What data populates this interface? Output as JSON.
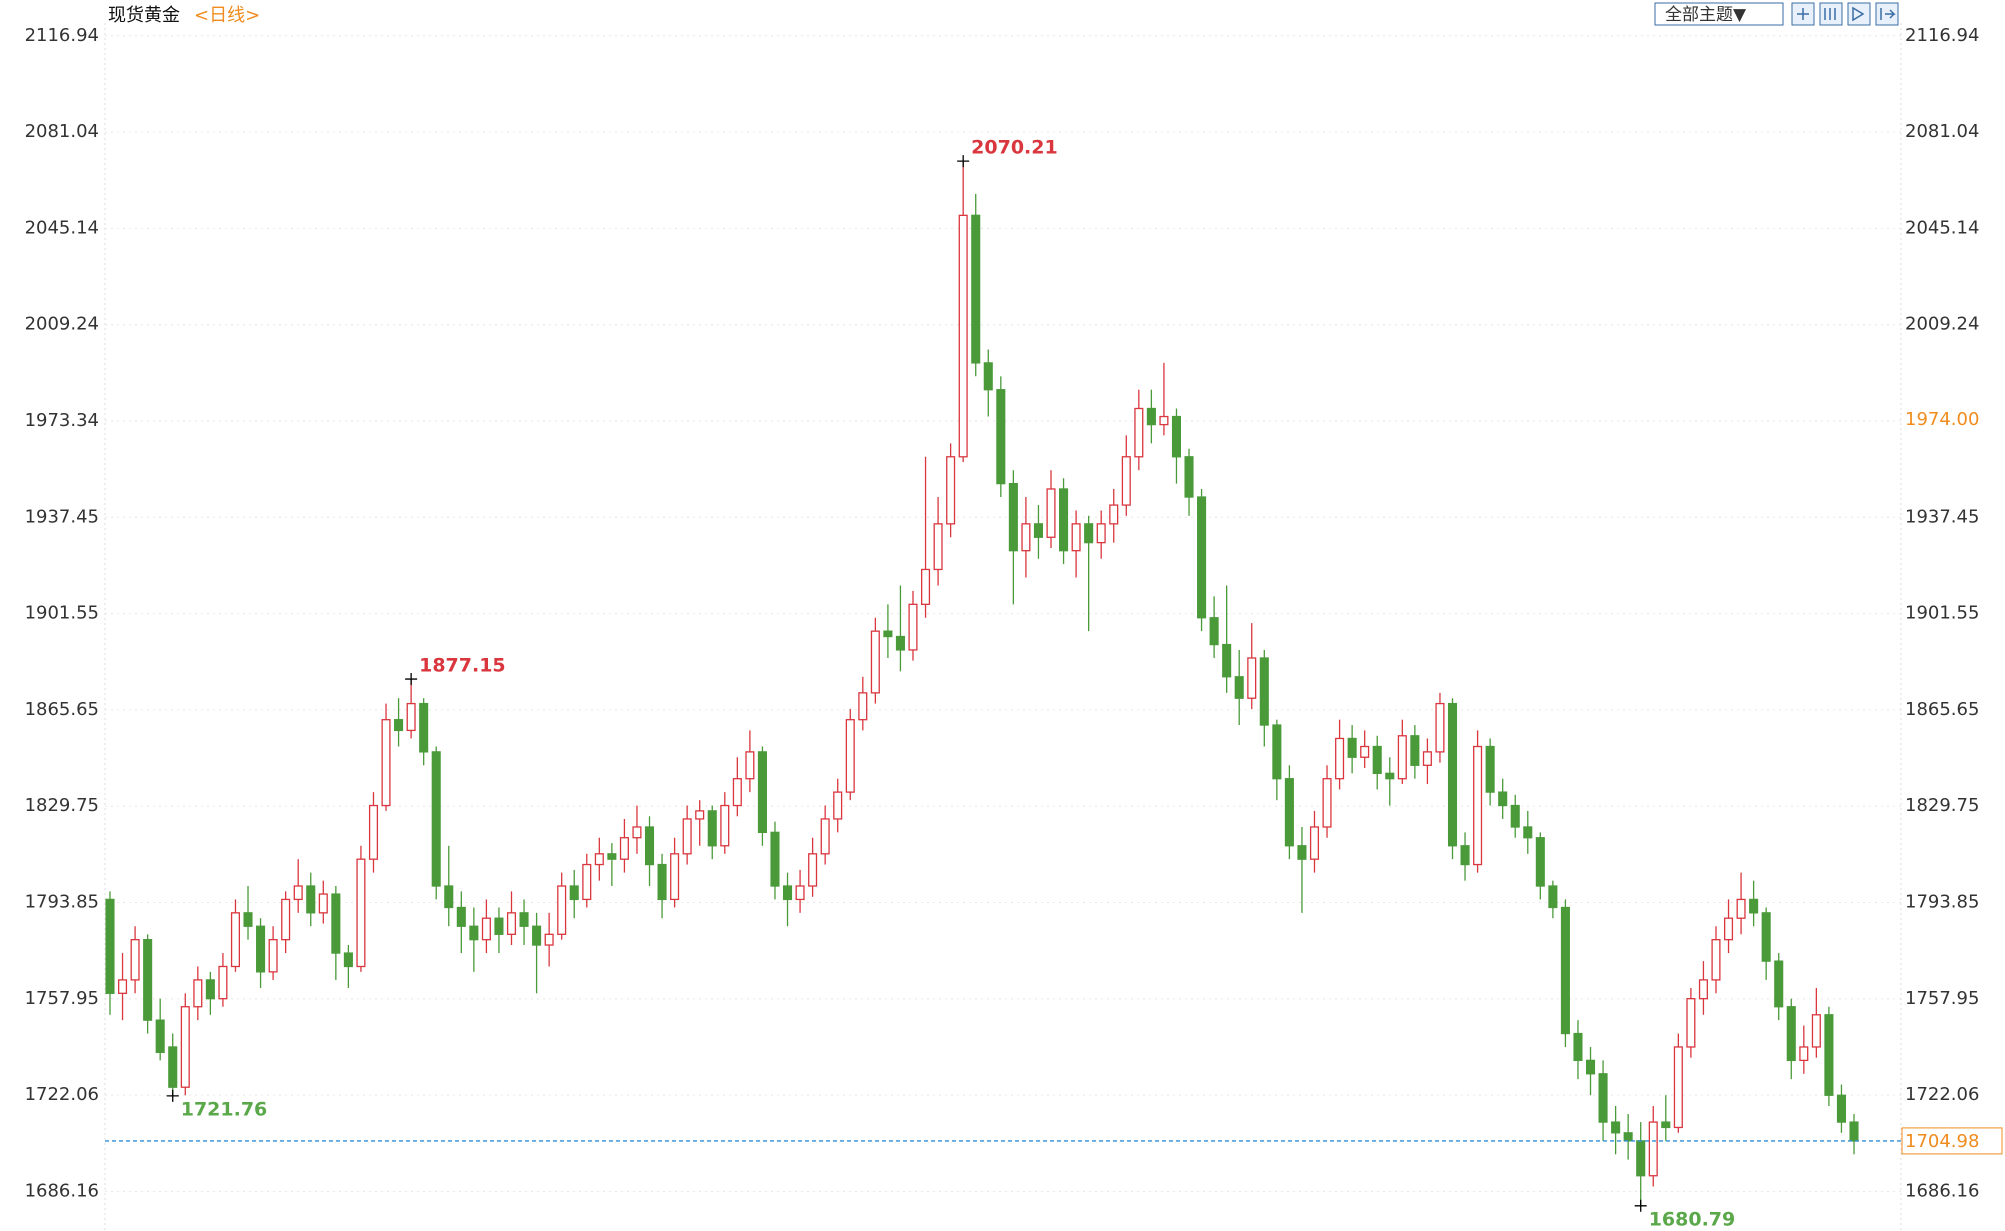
{
  "chart_data": {
    "type": "candlestick",
    "title": "现货黄金",
    "period": "<日线>",
    "theme_button": "全部主题▼",
    "ylim": [
      1671.4,
      2121.7
    ],
    "yticks": [
      2116.94,
      2081.04,
      2045.14,
      2009.24,
      1973.34,
      1937.45,
      1901.55,
      1865.65,
      1829.75,
      1793.85,
      1757.95,
      1722.06,
      1686.16
    ],
    "grid": true,
    "up_color": "#d9363e",
    "down_color": "#4a9a3a",
    "last_price_color": "#f08c1e",
    "line_color": "#2f8fd8",
    "marked_highs": [
      24,
      68
    ],
    "marked_lows": [
      5,
      122
    ],
    "price_tags": [
      {
        "value": 1974,
        "label": "1974.00"
      }
    ],
    "candles": [
      [
        1795,
        1798,
        1752,
        1760
      ],
      [
        1760,
        1775,
        1750,
        1765
      ],
      [
        1765,
        1785,
        1760,
        1780
      ],
      [
        1780,
        1782,
        1745,
        1750
      ],
      [
        1750,
        1758,
        1735,
        1738
      ],
      [
        1740,
        1745,
        1721.76,
        1725
      ],
      [
        1725,
        1760,
        1722,
        1755
      ],
      [
        1755,
        1770,
        1750,
        1765
      ],
      [
        1765,
        1768,
        1752,
        1758
      ],
      [
        1758,
        1775,
        1755,
        1770
      ],
      [
        1770,
        1795,
        1768,
        1790
      ],
      [
        1790,
        1800,
        1780,
        1785
      ],
      [
        1785,
        1788,
        1762,
        1768
      ],
      [
        1768,
        1785,
        1765,
        1780
      ],
      [
        1780,
        1798,
        1775,
        1795
      ],
      [
        1795,
        1810,
        1790,
        1800
      ],
      [
        1800,
        1805,
        1785,
        1790
      ],
      [
        1790,
        1802,
        1786,
        1797
      ],
      [
        1797,
        1800,
        1765,
        1775
      ],
      [
        1775,
        1778,
        1762,
        1770
      ],
      [
        1770,
        1815,
        1768,
        1810
      ],
      [
        1810,
        1835,
        1805,
        1830
      ],
      [
        1830,
        1868,
        1828,
        1862
      ],
      [
        1862,
        1870,
        1852,
        1858
      ],
      [
        1858,
        1877.15,
        1855,
        1868
      ],
      [
        1868,
        1870,
        1845,
        1850
      ],
      [
        1850,
        1852,
        1795,
        1800
      ],
      [
        1800,
        1815,
        1785,
        1792
      ],
      [
        1792,
        1798,
        1775,
        1785
      ],
      [
        1785,
        1792,
        1768,
        1780
      ],
      [
        1780,
        1795,
        1775,
        1788
      ],
      [
        1788,
        1792,
        1775,
        1782
      ],
      [
        1782,
        1798,
        1778,
        1790
      ],
      [
        1790,
        1795,
        1778,
        1785
      ],
      [
        1785,
        1790,
        1760,
        1778
      ],
      [
        1778,
        1790,
        1770,
        1782
      ],
      [
        1782,
        1805,
        1780,
        1800
      ],
      [
        1800,
        1806,
        1788,
        1795
      ],
      [
        1795,
        1812,
        1792,
        1808
      ],
      [
        1808,
        1818,
        1802,
        1812
      ],
      [
        1812,
        1816,
        1800,
        1810
      ],
      [
        1810,
        1825,
        1805,
        1818
      ],
      [
        1818,
        1830,
        1812,
        1822
      ],
      [
        1822,
        1826,
        1800,
        1808
      ],
      [
        1808,
        1812,
        1788,
        1795
      ],
      [
        1795,
        1818,
        1792,
        1812
      ],
      [
        1812,
        1830,
        1808,
        1825
      ],
      [
        1825,
        1832,
        1815,
        1828
      ],
      [
        1828,
        1830,
        1810,
        1815
      ],
      [
        1815,
        1835,
        1812,
        1830
      ],
      [
        1830,
        1848,
        1826,
        1840
      ],
      [
        1840,
        1858,
        1835,
        1850
      ],
      [
        1850,
        1852,
        1815,
        1820
      ],
      [
        1820,
        1824,
        1795,
        1800
      ],
      [
        1800,
        1805,
        1785,
        1795
      ],
      [
        1795,
        1806,
        1790,
        1800
      ],
      [
        1800,
        1818,
        1796,
        1812
      ],
      [
        1812,
        1830,
        1808,
        1825
      ],
      [
        1825,
        1840,
        1820,
        1835
      ],
      [
        1835,
        1866,
        1832,
        1862
      ],
      [
        1862,
        1878,
        1858,
        1872
      ],
      [
        1872,
        1900,
        1868,
        1895
      ],
      [
        1895,
        1905,
        1885,
        1893
      ],
      [
        1893,
        1912,
        1880,
        1888
      ],
      [
        1888,
        1910,
        1884,
        1905
      ],
      [
        1905,
        1960,
        1900,
        1918
      ],
      [
        1918,
        1945,
        1912,
        1935
      ],
      [
        1935,
        1965,
        1930,
        1960
      ],
      [
        1960,
        2070.21,
        1958,
        2050
      ],
      [
        2050,
        2058,
        1990,
        1995
      ],
      [
        1995,
        2000,
        1975,
        1985
      ],
      [
        1985,
        1990,
        1945,
        1950
      ],
      [
        1950,
        1955,
        1905,
        1925
      ],
      [
        1925,
        1945,
        1915,
        1935
      ],
      [
        1935,
        1942,
        1922,
        1930
      ],
      [
        1930,
        1955,
        1926,
        1948
      ],
      [
        1948,
        1952,
        1920,
        1925
      ],
      [
        1925,
        1940,
        1915,
        1935
      ],
      [
        1935,
        1938,
        1895,
        1928
      ],
      [
        1928,
        1940,
        1922,
        1935
      ],
      [
        1935,
        1948,
        1928,
        1942
      ],
      [
        1942,
        1968,
        1938,
        1960
      ],
      [
        1960,
        1985,
        1955,
        1978
      ],
      [
        1978,
        1985,
        1965,
        1972
      ],
      [
        1972,
        1995,
        1968,
        1975
      ],
      [
        1975,
        1978,
        1950,
        1960
      ],
      [
        1960,
        1963,
        1938,
        1945
      ],
      [
        1945,
        1948,
        1895,
        1900
      ],
      [
        1900,
        1908,
        1885,
        1890
      ],
      [
        1890,
        1912,
        1872,
        1878
      ],
      [
        1878,
        1888,
        1860,
        1870
      ],
      [
        1870,
        1898,
        1866,
        1885
      ],
      [
        1885,
        1888,
        1852,
        1860
      ],
      [
        1860,
        1862,
        1832,
        1840
      ],
      [
        1840,
        1845,
        1810,
        1815
      ],
      [
        1815,
        1822,
        1790,
        1810
      ],
      [
        1810,
        1828,
        1805,
        1822
      ],
      [
        1822,
        1845,
        1818,
        1840
      ],
      [
        1840,
        1862,
        1836,
        1855
      ],
      [
        1855,
        1860,
        1842,
        1848
      ],
      [
        1848,
        1858,
        1844,
        1852
      ],
      [
        1852,
        1856,
        1836,
        1842
      ],
      [
        1842,
        1848,
        1830,
        1840
      ],
      [
        1840,
        1862,
        1838,
        1856
      ],
      [
        1856,
        1860,
        1840,
        1845
      ],
      [
        1845,
        1855,
        1838,
        1850
      ],
      [
        1850,
        1872,
        1846,
        1868
      ],
      [
        1868,
        1870,
        1810,
        1815
      ],
      [
        1815,
        1820,
        1802,
        1808
      ],
      [
        1808,
        1858,
        1805,
        1852
      ],
      [
        1852,
        1855,
        1830,
        1835
      ],
      [
        1835,
        1840,
        1825,
        1830
      ],
      [
        1830,
        1834,
        1818,
        1822
      ],
      [
        1822,
        1828,
        1812,
        1818
      ],
      [
        1818,
        1820,
        1795,
        1800
      ],
      [
        1800,
        1802,
        1788,
        1792
      ],
      [
        1792,
        1795,
        1740,
        1745
      ],
      [
        1745,
        1750,
        1728,
        1735
      ],
      [
        1735,
        1740,
        1722,
        1730
      ],
      [
        1730,
        1735,
        1705,
        1712
      ],
      [
        1712,
        1718,
        1700,
        1708
      ],
      [
        1708,
        1715,
        1698,
        1705
      ],
      [
        1705,
        1712,
        1680.79,
        1692
      ],
      [
        1692,
        1718,
        1688,
        1712
      ],
      [
        1712,
        1722,
        1705,
        1710
      ],
      [
        1710,
        1745,
        1708,
        1740
      ],
      [
        1740,
        1762,
        1736,
        1758
      ],
      [
        1758,
        1772,
        1752,
        1765
      ],
      [
        1765,
        1785,
        1760,
        1780
      ],
      [
        1780,
        1795,
        1775,
        1788
      ],
      [
        1788,
        1805,
        1782,
        1795
      ],
      [
        1795,
        1802,
        1785,
        1790
      ],
      [
        1790,
        1792,
        1765,
        1772
      ],
      [
        1772,
        1775,
        1750,
        1755
      ],
      [
        1755,
        1758,
        1728,
        1735
      ],
      [
        1735,
        1748,
        1730,
        1740
      ],
      [
        1740,
        1762,
        1736,
        1752
      ],
      [
        1752,
        1755,
        1718,
        1722
      ],
      [
        1722,
        1726,
        1708,
        1712
      ],
      [
        1712,
        1715,
        1700,
        1704.98
      ]
    ]
  }
}
